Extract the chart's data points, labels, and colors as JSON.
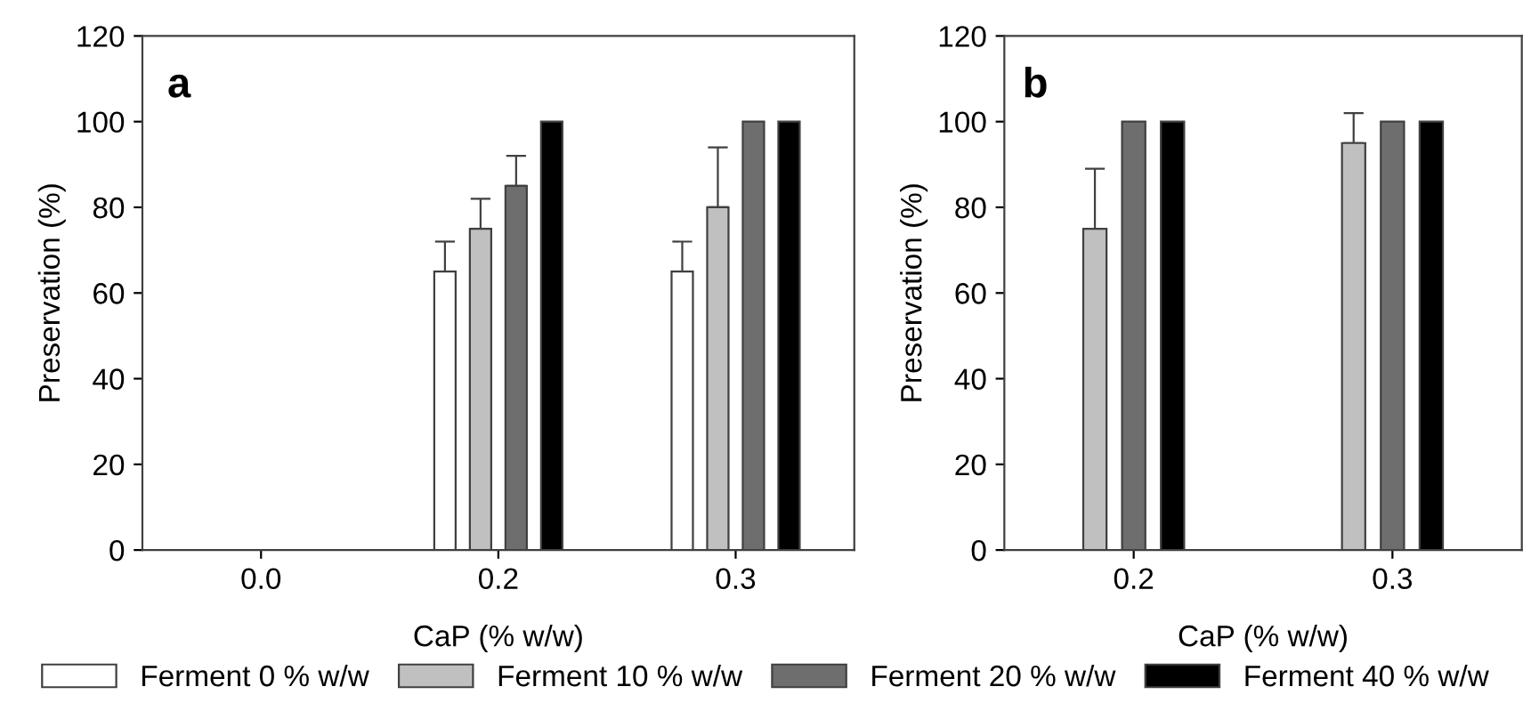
{
  "chart_data": [
    {
      "type": "bar",
      "title": "a",
      "xlabel": "CaP (% w/w)",
      "ylabel": "Preservation (%)",
      "categories": [
        "0.0",
        "0.2",
        "0.3"
      ],
      "ylim": [
        0,
        120
      ],
      "yticks": [
        0,
        20,
        40,
        60,
        80,
        100,
        120
      ],
      "legend": "bottom",
      "grid": false,
      "series": [
        {
          "name": "Ferment 0 % w/w",
          "color": "#ffffff",
          "values": [
            null,
            65,
            65
          ],
          "errors": [
            null,
            [
              65,
              72
            ],
            [
              65,
              72
            ]
          ]
        },
        {
          "name": "Ferment 10 % w/w",
          "color": "#c0c0c0",
          "values": [
            null,
            75,
            80
          ],
          "errors": [
            null,
            [
              75,
              82
            ],
            [
              80,
              94
            ]
          ]
        },
        {
          "name": "Ferment 20 % w/w",
          "color": "#6e6e6e",
          "values": [
            null,
            85,
            100
          ],
          "errors": [
            null,
            [
              85,
              92
            ],
            null
          ]
        },
        {
          "name": "Ferment 40 % w/w",
          "color": "#000000",
          "values": [
            null,
            100,
            100
          ],
          "errors": [
            null,
            null,
            null
          ]
        }
      ]
    },
    {
      "type": "bar",
      "title": "b",
      "xlabel": "CaP (% w/w)",
      "ylabel": "Preservation (%)",
      "categories": [
        "0.2",
        "0.3"
      ],
      "ylim": [
        0,
        120
      ],
      "yticks": [
        0,
        20,
        40,
        60,
        80,
        100,
        120
      ],
      "grid": false,
      "series": [
        {
          "color": "#c0c0c0",
          "values": [
            75,
            95
          ],
          "errors": [
            [
              75,
              89
            ],
            [
              95,
              102
            ]
          ]
        },
        {
          "color": "#6e6e6e",
          "values": [
            100,
            100
          ],
          "errors": [
            null,
            null
          ]
        },
        {
          "color": "#000000",
          "values": [
            100,
            100
          ],
          "errors": [
            null,
            null
          ]
        }
      ]
    }
  ]
}
